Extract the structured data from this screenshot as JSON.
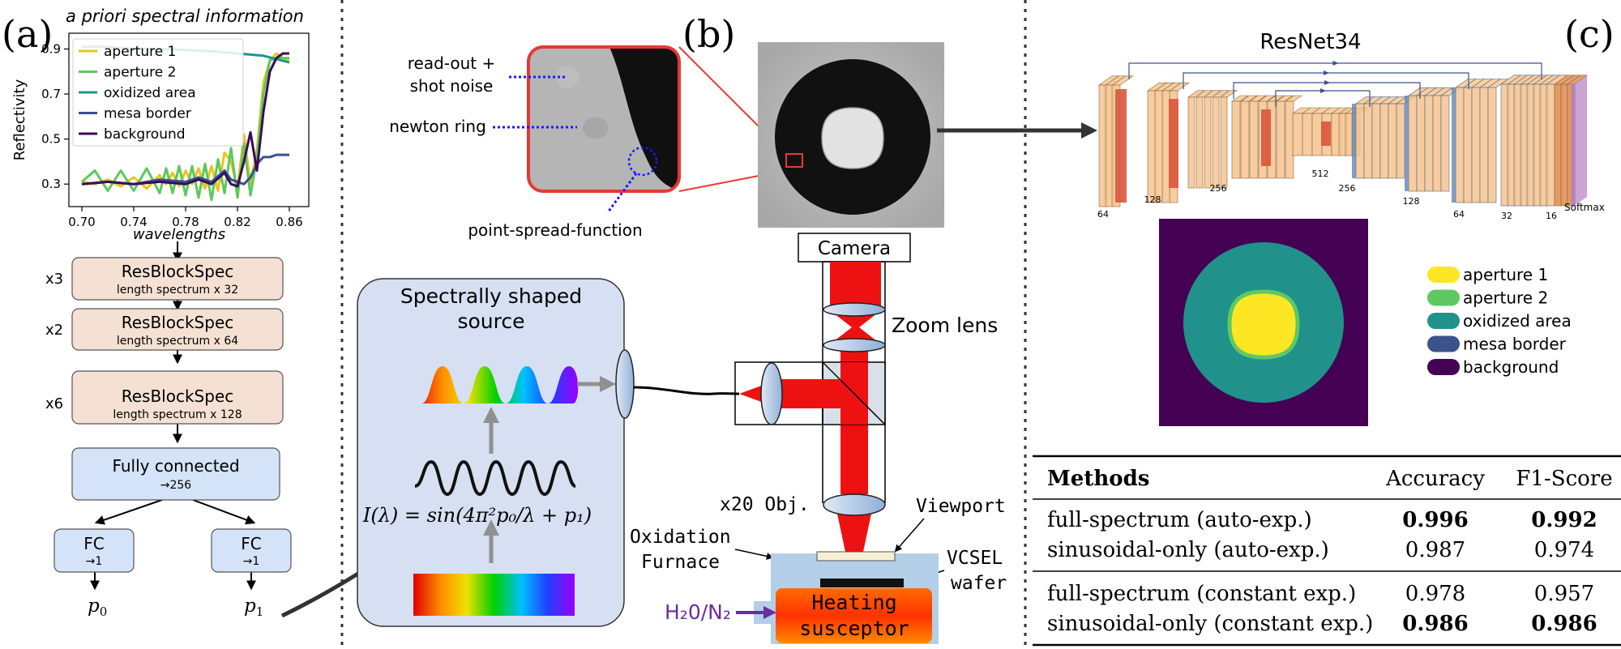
{
  "panel_a": {
    "label": "(a)",
    "chart_title": "a priori spectral information",
    "chart_data": {
      "type": "line",
      "title": "a priori spectral information",
      "xlabel": "wavelengths",
      "ylabel": "Reflectivity",
      "xlim": [
        0.69,
        0.875
      ],
      "ylim": [
        0.2,
        0.97
      ],
      "xticks": [
        "0.70",
        "0.74",
        "0.78",
        "0.82",
        "0.86"
      ],
      "xtick_values": [
        0.7,
        0.74,
        0.78,
        0.82,
        0.86
      ],
      "yticks": [
        "0.3",
        "0.5",
        "0.7",
        "0.9"
      ],
      "ytick_values": [
        0.3,
        0.5,
        0.7,
        0.9
      ],
      "legend_position": "upper-left",
      "grid": false,
      "series": [
        {
          "name": "aperture 1",
          "color": "#e8c51a",
          "x": [
            0.7,
            0.71,
            0.72,
            0.73,
            0.74,
            0.75,
            0.76,
            0.765,
            0.77,
            0.775,
            0.78,
            0.785,
            0.79,
            0.795,
            0.8,
            0.805,
            0.81,
            0.815,
            0.82,
            0.825,
            0.83,
            0.835,
            0.84,
            0.845,
            0.85,
            0.855,
            0.86
          ],
          "y": [
            0.31,
            0.3,
            0.32,
            0.29,
            0.33,
            0.28,
            0.34,
            0.3,
            0.35,
            0.29,
            0.36,
            0.3,
            0.37,
            0.28,
            0.38,
            0.27,
            0.44,
            0.4,
            0.28,
            0.52,
            0.3,
            0.45,
            0.75,
            0.85,
            0.88,
            0.86,
            0.85
          ]
        },
        {
          "name": "aperture 2",
          "color": "#5cc85c",
          "x": [
            0.7,
            0.71,
            0.72,
            0.73,
            0.74,
            0.75,
            0.76,
            0.765,
            0.77,
            0.775,
            0.78,
            0.785,
            0.79,
            0.795,
            0.8,
            0.805,
            0.81,
            0.815,
            0.82,
            0.825,
            0.83,
            0.835,
            0.84,
            0.845,
            0.85,
            0.855,
            0.86
          ],
          "y": [
            0.31,
            0.36,
            0.27,
            0.36,
            0.27,
            0.37,
            0.26,
            0.37,
            0.26,
            0.38,
            0.25,
            0.38,
            0.24,
            0.39,
            0.23,
            0.41,
            0.26,
            0.46,
            0.24,
            0.48,
            0.25,
            0.42,
            0.7,
            0.85,
            0.86,
            0.86,
            0.86
          ]
        },
        {
          "name": "oxidized area",
          "color": "#1f9490",
          "x": [
            0.7,
            0.72,
            0.74,
            0.76,
            0.78,
            0.8,
            0.82,
            0.84,
            0.86
          ],
          "y": [
            0.91,
            0.91,
            0.9,
            0.9,
            0.895,
            0.89,
            0.88,
            0.87,
            0.84
          ]
        },
        {
          "name": "mesa border",
          "color": "#3b4f8f",
          "x": [
            0.7,
            0.72,
            0.74,
            0.76,
            0.78,
            0.79,
            0.8,
            0.81,
            0.815,
            0.82,
            0.825,
            0.83,
            0.835,
            0.84,
            0.845,
            0.85,
            0.855,
            0.86
          ],
          "y": [
            0.3,
            0.31,
            0.3,
            0.32,
            0.31,
            0.33,
            0.31,
            0.36,
            0.32,
            0.31,
            0.3,
            0.33,
            0.39,
            0.42,
            0.42,
            0.43,
            0.43,
            0.43
          ]
        },
        {
          "name": "background",
          "color": "#3d0a5a",
          "x": [
            0.7,
            0.72,
            0.74,
            0.76,
            0.78,
            0.79,
            0.8,
            0.81,
            0.815,
            0.82,
            0.825,
            0.83,
            0.835,
            0.84,
            0.845,
            0.85,
            0.855,
            0.86
          ],
          "y": [
            0.3,
            0.31,
            0.3,
            0.31,
            0.3,
            0.32,
            0.3,
            0.35,
            0.3,
            0.29,
            0.4,
            0.53,
            0.36,
            0.62,
            0.8,
            0.86,
            0.88,
            0.88
          ]
        }
      ]
    },
    "blocks": [
      {
        "repeat": "x3",
        "title": "ResBlockSpec",
        "sub": "length spectrum x 32"
      },
      {
        "repeat": "x2",
        "title": "ResBlockSpec",
        "sub": "length spectrum x 64"
      },
      {
        "repeat": "x6",
        "title": "ResBlockSpec",
        "sub": "length spectrum x 128"
      }
    ],
    "fc_main": {
      "title": "Fully connected",
      "sub": "→256"
    },
    "fc_left": {
      "title": "FC",
      "sub": "→1",
      "out": "p",
      "out_sub": "0"
    },
    "fc_right": {
      "title": "FC",
      "sub": "→1",
      "out": "p",
      "out_sub": "1"
    },
    "colors": {
      "resblock": "#f5e1d3",
      "fc": "#d4e3f7"
    }
  },
  "panel_b": {
    "label": "(b)",
    "annotations": {
      "readout_1": "read-out +",
      "readout_2": "shot noise",
      "newton": "newton ring",
      "psf": "point-spread-function"
    },
    "source_title_1": "Spectrally shaped",
    "source_title_2": "source",
    "formula": "I(λ) = sin(4π²p₀/λ + p₁)",
    "camera": "Camera",
    "zoom_lens": "Zoom lens",
    "objective": "x20 Obj.",
    "viewport": "Viewport",
    "furnace_1": "Oxidation",
    "furnace_2": "Furnace",
    "vcsel_1": "VCSEL",
    "vcsel_2": "wafer",
    "heating_1": "Heating",
    "heating_2": "susceptor",
    "gas": "H₂0/N₂",
    "colors": {
      "source_box": "#d6e0f2",
      "beam": "#ee1111",
      "gas": "#6a2ca0",
      "highlight": "#e53935"
    }
  },
  "panel_c": {
    "label": "(c)",
    "net_title": "ResNet34",
    "layer_labels": [
      "64",
      "128",
      "256",
      "512",
      "256",
      "128",
      "64",
      "32",
      "16",
      "Softmax"
    ],
    "legend": [
      {
        "name": "aperture 1",
        "color": "#fde725"
      },
      {
        "name": "aperture 2",
        "color": "#5ec962"
      },
      {
        "name": "oxidized area",
        "color": "#21918c"
      },
      {
        "name": "mesa border",
        "color": "#3b528b"
      },
      {
        "name": "background",
        "color": "#440154"
      }
    ],
    "table": {
      "headers": [
        "Methods",
        "Accuracy",
        "F1-Score"
      ],
      "group1": [
        {
          "method": "full-spectrum (auto-exp.)",
          "accuracy": "0.996",
          "f1": "0.992",
          "bold_acc": true,
          "bold_f1": true
        },
        {
          "method": "sinusoidal-only (auto-exp.)",
          "accuracy": "0.987",
          "f1": "0.974",
          "bold_acc": false,
          "bold_f1": false
        }
      ],
      "group2": [
        {
          "method": "full-spectrum (constant exp.)",
          "accuracy": "0.978",
          "f1": "0.957",
          "bold_acc": false,
          "bold_f1": false
        },
        {
          "method": "sinusoidal-only (constant exp.)",
          "accuracy": "0.986",
          "f1": "0.986",
          "bold_acc": true,
          "bold_f1": true
        }
      ]
    }
  }
}
